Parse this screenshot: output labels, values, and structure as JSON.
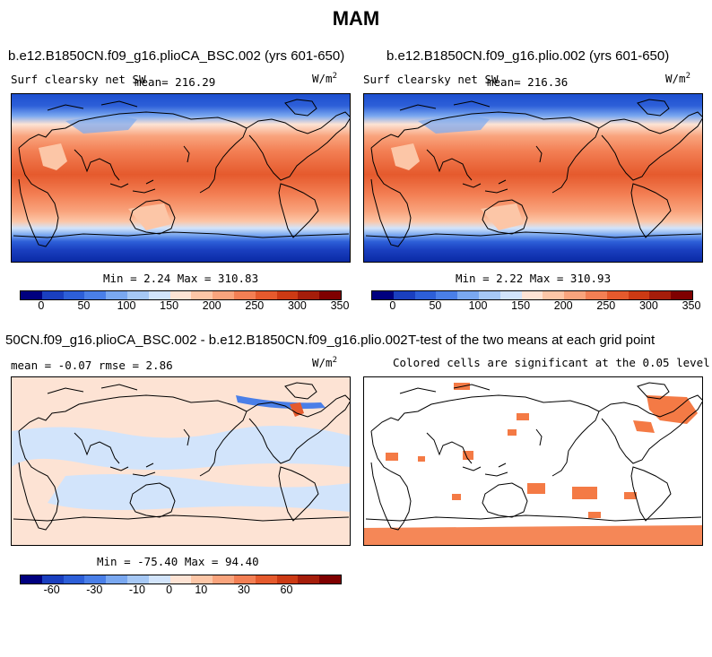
{
  "title": "MAM",
  "panels": {
    "p1": {
      "case": "b.e12.B1850CN.f09_g16.plioCA_BSC.002 (yrs 601-650)",
      "variable": "Surf clearsky net SW",
      "mean_label": "mean=",
      "mean": "216.29",
      "units_base": "W/m",
      "units_exp": "2",
      "minmax": "Min =   2.24 Max = 310.83"
    },
    "p2": {
      "case": "b.e12.B1850CN.f09_g16.plio.002 (yrs 601-650)",
      "variable": "Surf clearsky net SW",
      "mean_label": "mean=",
      "mean": "216.36",
      "units_base": "W/m",
      "units_exp": "2",
      "minmax": "Min =   2.22 Max = 310.93"
    },
    "p3": {
      "case": "50CN.f09_g16.plioCA_BSC.002 - b.e12.B1850CN.f09_g16.plio.002",
      "stats": "mean =  -0.07    rmse =   2.86",
      "units_base": "W/m",
      "units_exp": "2",
      "minmax": "Min = -75.40 Max =  94.40"
    },
    "p4": {
      "title": "T-test of the two means at each grid point",
      "subtitle": "Colored cells are significant at the 0.05 level"
    }
  },
  "colorbars": {
    "abs": {
      "colors": [
        "#00007f",
        "#1a3fbf",
        "#2d5fd8",
        "#4a7fe8",
        "#7aa8f0",
        "#a6c8f5",
        "#d2e4fb",
        "#fde3d4",
        "#fcc6a7",
        "#f9a47d",
        "#f37f54",
        "#e55a2d",
        "#cc3a14",
        "#a51d0a",
        "#7f0000"
      ],
      "ticks": [
        "0",
        "50",
        "100",
        "150",
        "200",
        "250",
        "300",
        "350"
      ]
    },
    "diff": {
      "colors": [
        "#00007f",
        "#1a3fbf",
        "#2d5fd8",
        "#4a7fe8",
        "#7aa8f0",
        "#a6c8f5",
        "#d2e4fb",
        "#fde3d4",
        "#fcc6a7",
        "#f9a47d",
        "#f37f54",
        "#e55a2d",
        "#cc3a14",
        "#a51d0a",
        "#7f0000"
      ],
      "ticks": [
        "-60",
        "-30",
        "-10",
        "0",
        "10",
        "30",
        "60"
      ]
    }
  },
  "colors": {
    "significant": "#f47a45",
    "diff_background": "#fde3d4",
    "diff_negative": "#d2e4fb"
  }
}
